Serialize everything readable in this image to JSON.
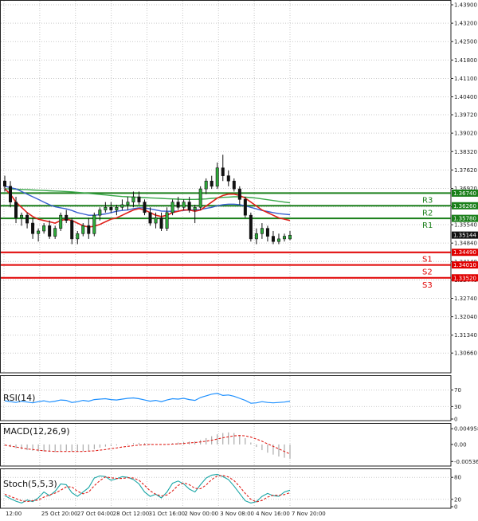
{
  "chart_data": {
    "type": "candlestick",
    "symbol_scale": "price",
    "main": {
      "ylim": [
        1.3006,
        1.439
      ],
      "y_ticks": [
        "1.43900",
        "1.43200",
        "1.42500",
        "1.41800",
        "1.41100",
        "1.40400",
        "1.39720",
        "1.39020",
        "1.38320",
        "1.37620",
        "1.36920",
        "1.36220",
        "1.35540",
        "1.34840",
        "1.34140",
        "1.33440",
        "1.32740",
        "1.32040",
        "1.31340",
        "1.30660"
      ],
      "last_price": "1.35144",
      "levels": [
        {
          "name": "R3",
          "value": "1.36740",
          "color": "#1a7f1a"
        },
        {
          "name": "R2",
          "value": "1.36260",
          "color": "#1a7f1a"
        },
        {
          "name": "R1",
          "value": "1.35780",
          "color": "#1a7f1a"
        },
        {
          "name": "S1",
          "value": "1.34490",
          "color": "#e00000"
        },
        {
          "name": "S2",
          "value": "1.34010",
          "color": "#e00000"
        },
        {
          "name": "S3",
          "value": "1.33520",
          "color": "#e00000"
        }
      ],
      "candles": [
        [
          1.372,
          1.374,
          1.368,
          1.37
        ],
        [
          1.37,
          1.372,
          1.362,
          1.364
        ],
        [
          1.364,
          1.366,
          1.356,
          1.358
        ],
        [
          1.358,
          1.36,
          1.355,
          1.359
        ],
        [
          1.359,
          1.36,
          1.354,
          1.356
        ],
        [
          1.356,
          1.358,
          1.35,
          1.352
        ],
        [
          1.352,
          1.354,
          1.349,
          1.353
        ],
        [
          1.353,
          1.356,
          1.352,
          1.355
        ],
        [
          1.355,
          1.357,
          1.35,
          1.351
        ],
        [
          1.351,
          1.355,
          1.35,
          1.354
        ],
        [
          1.354,
          1.36,
          1.353,
          1.359
        ],
        [
          1.359,
          1.361,
          1.356,
          1.357
        ],
        [
          1.357,
          1.358,
          1.348,
          1.35
        ],
        [
          1.35,
          1.353,
          1.348,
          1.352
        ],
        [
          1.352,
          1.356,
          1.351,
          1.355
        ],
        [
          1.355,
          1.358,
          1.35,
          1.352
        ],
        [
          1.352,
          1.36,
          1.351,
          1.359
        ],
        [
          1.359,
          1.362,
          1.357,
          1.361
        ],
        [
          1.361,
          1.364,
          1.36,
          1.362
        ],
        [
          1.362,
          1.364,
          1.36,
          1.361
        ],
        [
          1.361,
          1.363,
          1.359,
          1.362
        ],
        [
          1.362,
          1.365,
          1.361,
          1.363
        ],
        [
          1.363,
          1.366,
          1.361,
          1.364
        ],
        [
          1.364,
          1.368,
          1.362,
          1.366
        ],
        [
          1.366,
          1.368,
          1.363,
          1.364
        ],
        [
          1.364,
          1.365,
          1.359,
          1.36
        ],
        [
          1.36,
          1.362,
          1.355,
          1.356
        ],
        [
          1.356,
          1.36,
          1.354,
          1.358
        ],
        [
          1.358,
          1.36,
          1.353,
          1.354
        ],
        [
          1.354,
          1.362,
          1.353,
          1.36
        ],
        [
          1.36,
          1.365,
          1.359,
          1.364
        ],
        [
          1.364,
          1.366,
          1.361,
          1.362
        ],
        [
          1.362,
          1.365,
          1.361,
          1.364
        ],
        [
          1.364,
          1.366,
          1.36,
          1.361
        ],
        [
          1.361,
          1.363,
          1.356,
          1.362
        ],
        [
          1.362,
          1.37,
          1.361,
          1.369
        ],
        [
          1.369,
          1.373,
          1.367,
          1.372
        ],
        [
          1.372,
          1.374,
          1.369,
          1.37
        ],
        [
          1.37,
          1.379,
          1.369,
          1.377
        ],
        [
          1.377,
          1.382,
          1.372,
          1.374
        ],
        [
          1.374,
          1.376,
          1.37,
          1.372
        ],
        [
          1.372,
          1.373,
          1.368,
          1.369
        ],
        [
          1.369,
          1.37,
          1.363,
          1.365
        ],
        [
          1.365,
          1.366,
          1.358,
          1.359
        ],
        [
          1.359,
          1.36,
          1.349,
          1.35
        ],
        [
          1.35,
          1.354,
          1.348,
          1.352
        ],
        [
          1.352,
          1.356,
          1.35,
          1.354
        ],
        [
          1.354,
          1.355,
          1.349,
          1.351
        ],
        [
          1.351,
          1.353,
          1.348,
          1.349
        ],
        [
          1.349,
          1.352,
          1.348,
          1.35
        ],
        [
          1.35,
          1.352,
          1.349,
          1.351
        ],
        [
          1.35,
          1.353,
          1.3495,
          1.3514
        ]
      ],
      "ma_fast_red": [
        1.369,
        1.367,
        1.364,
        1.362,
        1.36,
        1.3585,
        1.3575,
        1.357,
        1.3565,
        1.356,
        1.357,
        1.3575,
        1.357,
        1.356,
        1.355,
        1.3545,
        1.3548,
        1.3555,
        1.3565,
        1.3575,
        1.358,
        1.359,
        1.36,
        1.361,
        1.3615,
        1.361,
        1.36,
        1.359,
        1.3585,
        1.359,
        1.36,
        1.3605,
        1.361,
        1.361,
        1.3605,
        1.361,
        1.3625,
        1.364,
        1.3655,
        1.3665,
        1.367,
        1.367,
        1.3665,
        1.3655,
        1.364,
        1.3625,
        1.361,
        1.36,
        1.359,
        1.358,
        1.3575,
        1.357
      ],
      "ma_mid_blue": [
        1.37,
        1.3695,
        1.369,
        1.368,
        1.367,
        1.366,
        1.365,
        1.364,
        1.363,
        1.3622,
        1.3618,
        1.3614,
        1.3608,
        1.36,
        1.3595,
        1.359,
        1.359,
        1.3592,
        1.3595,
        1.36,
        1.3605,
        1.3608,
        1.361,
        1.3615,
        1.3618,
        1.3618,
        1.3614,
        1.361,
        1.3606,
        1.3605,
        1.3605,
        1.3606,
        1.3608,
        1.361,
        1.361,
        1.3612,
        1.3616,
        1.362,
        1.3626,
        1.363,
        1.3632,
        1.3632,
        1.363,
        1.3626,
        1.362,
        1.3614,
        1.3608,
        1.3604,
        1.36,
        1.3596,
        1.3594,
        1.3592
      ],
      "ma_slow_green": [
        1.369,
        1.369,
        1.3689,
        1.3688,
        1.3687,
        1.3686,
        1.3685,
        1.3684,
        1.3683,
        1.3682,
        1.3681,
        1.368,
        1.3679,
        1.3677,
        1.3675,
        1.3673,
        1.3671,
        1.3669,
        1.3667,
        1.3665,
        1.3663,
        1.3661,
        1.366,
        1.3659,
        1.3658,
        1.3657,
        1.3656,
        1.3655,
        1.3654,
        1.3653,
        1.3652,
        1.3651,
        1.365,
        1.365,
        1.365,
        1.3651,
        1.3652,
        1.3654,
        1.3656,
        1.3658,
        1.3659,
        1.366,
        1.366,
        1.3659,
        1.3657,
        1.3655,
        1.3652,
        1.3649,
        1.3646,
        1.3643,
        1.364,
        1.3637
      ]
    },
    "x_ticks": [
      "12:00",
      "25 Oct 20:00",
      "27 Oct 04:00",
      "28 Oct 12:00",
      "31 Oct 16:00",
      "2 Nov 00:00",
      "3 Nov 08:00",
      "4 Nov 16:00",
      "7 Nov 20:00"
    ],
    "rsi": {
      "title": "RSI(14)",
      "ylim": [
        0,
        100
      ],
      "y_ticks": [
        "70",
        "30",
        "0"
      ],
      "values": [
        44,
        42,
        40,
        43,
        41,
        39,
        42,
        44,
        41,
        43,
        46,
        45,
        40,
        42,
        45,
        43,
        47,
        48,
        49,
        47,
        46,
        48,
        50,
        51,
        49,
        46,
        43,
        45,
        42,
        46,
        49,
        48,
        50,
        47,
        45,
        52,
        56,
        60,
        62,
        57,
        58,
        55,
        50,
        45,
        38,
        39,
        42,
        40,
        39,
        40,
        41,
        43
      ]
    },
    "macd": {
      "title": "MACD(12,26,9)",
      "y_ticks": [
        "0.004958",
        "0.00",
        "-0.005368"
      ],
      "ylim": [
        -0.0063,
        0.006
      ],
      "hist": [
        -0.0004,
        -0.0008,
        -0.0012,
        -0.0015,
        -0.0018,
        -0.002,
        -0.0022,
        -0.0022,
        -0.0023,
        -0.0024,
        -0.0022,
        -0.002,
        -0.0022,
        -0.0023,
        -0.0021,
        -0.002,
        -0.0015,
        -0.001,
        -0.0007,
        -0.0005,
        -0.0003,
        0.0,
        0.0002,
        0.0004,
        0.0005,
        0.0004,
        0.0002,
        0.0,
        -0.0001,
        0.0001,
        0.0004,
        0.0006,
        0.0008,
        0.0009,
        0.001,
        0.0014,
        0.002,
        0.0026,
        0.0032,
        0.0036,
        0.0038,
        0.0036,
        0.003,
        0.002,
        0.0006,
        -0.0008,
        -0.0018,
        -0.0026,
        -0.0032,
        -0.0038,
        -0.0042,
        -0.0045
      ],
      "signal": [
        -0.0002,
        -0.0005,
        -0.0008,
        -0.0011,
        -0.0014,
        -0.0016,
        -0.0018,
        -0.002,
        -0.0021,
        -0.0022,
        -0.0022,
        -0.0022,
        -0.0022,
        -0.0022,
        -0.0022,
        -0.0021,
        -0.002,
        -0.0018,
        -0.0016,
        -0.0013,
        -0.0011,
        -0.0008,
        -0.0006,
        -0.0004,
        -0.0002,
        -0.0001,
        0.0,
        0.0,
        0.0,
        0.0,
        0.0001,
        0.0002,
        0.0003,
        0.0005,
        0.0006,
        0.0008,
        0.001,
        0.0013,
        0.0017,
        0.0021,
        0.0024,
        0.0027,
        0.0028,
        0.0027,
        0.0023,
        0.0017,
        0.001,
        0.0002,
        -0.0006,
        -0.0014,
        -0.0022,
        -0.003
      ]
    },
    "stoch": {
      "title": "Stoch(5,5,3)",
      "ylim": [
        0,
        100
      ],
      "y_ticks": [
        "80",
        "20",
        "0"
      ],
      "main_k": [
        30,
        22,
        15,
        10,
        18,
        14,
        24,
        40,
        30,
        42,
        62,
        60,
        38,
        28,
        40,
        52,
        78,
        84,
        82,
        72,
        76,
        82,
        80,
        74,
        62,
        40,
        28,
        34,
        24,
        40,
        64,
        70,
        62,
        48,
        40,
        60,
        78,
        86,
        88,
        82,
        74,
        56,
        36,
        16,
        10,
        14,
        28,
        36,
        30,
        28,
        40,
        45
      ],
      "signal_d": [
        34,
        28,
        22,
        16,
        14,
        16,
        18,
        26,
        32,
        37,
        45,
        54,
        54,
        42,
        35,
        40,
        57,
        71,
        81,
        79,
        77,
        77,
        79,
        78,
        72,
        58,
        43,
        34,
        29,
        32,
        43,
        58,
        65,
        60,
        50,
        49,
        59,
        74,
        84,
        85,
        81,
        71,
        55,
        36,
        20,
        13,
        17,
        26,
        31,
        31,
        33,
        38
      ]
    }
  }
}
